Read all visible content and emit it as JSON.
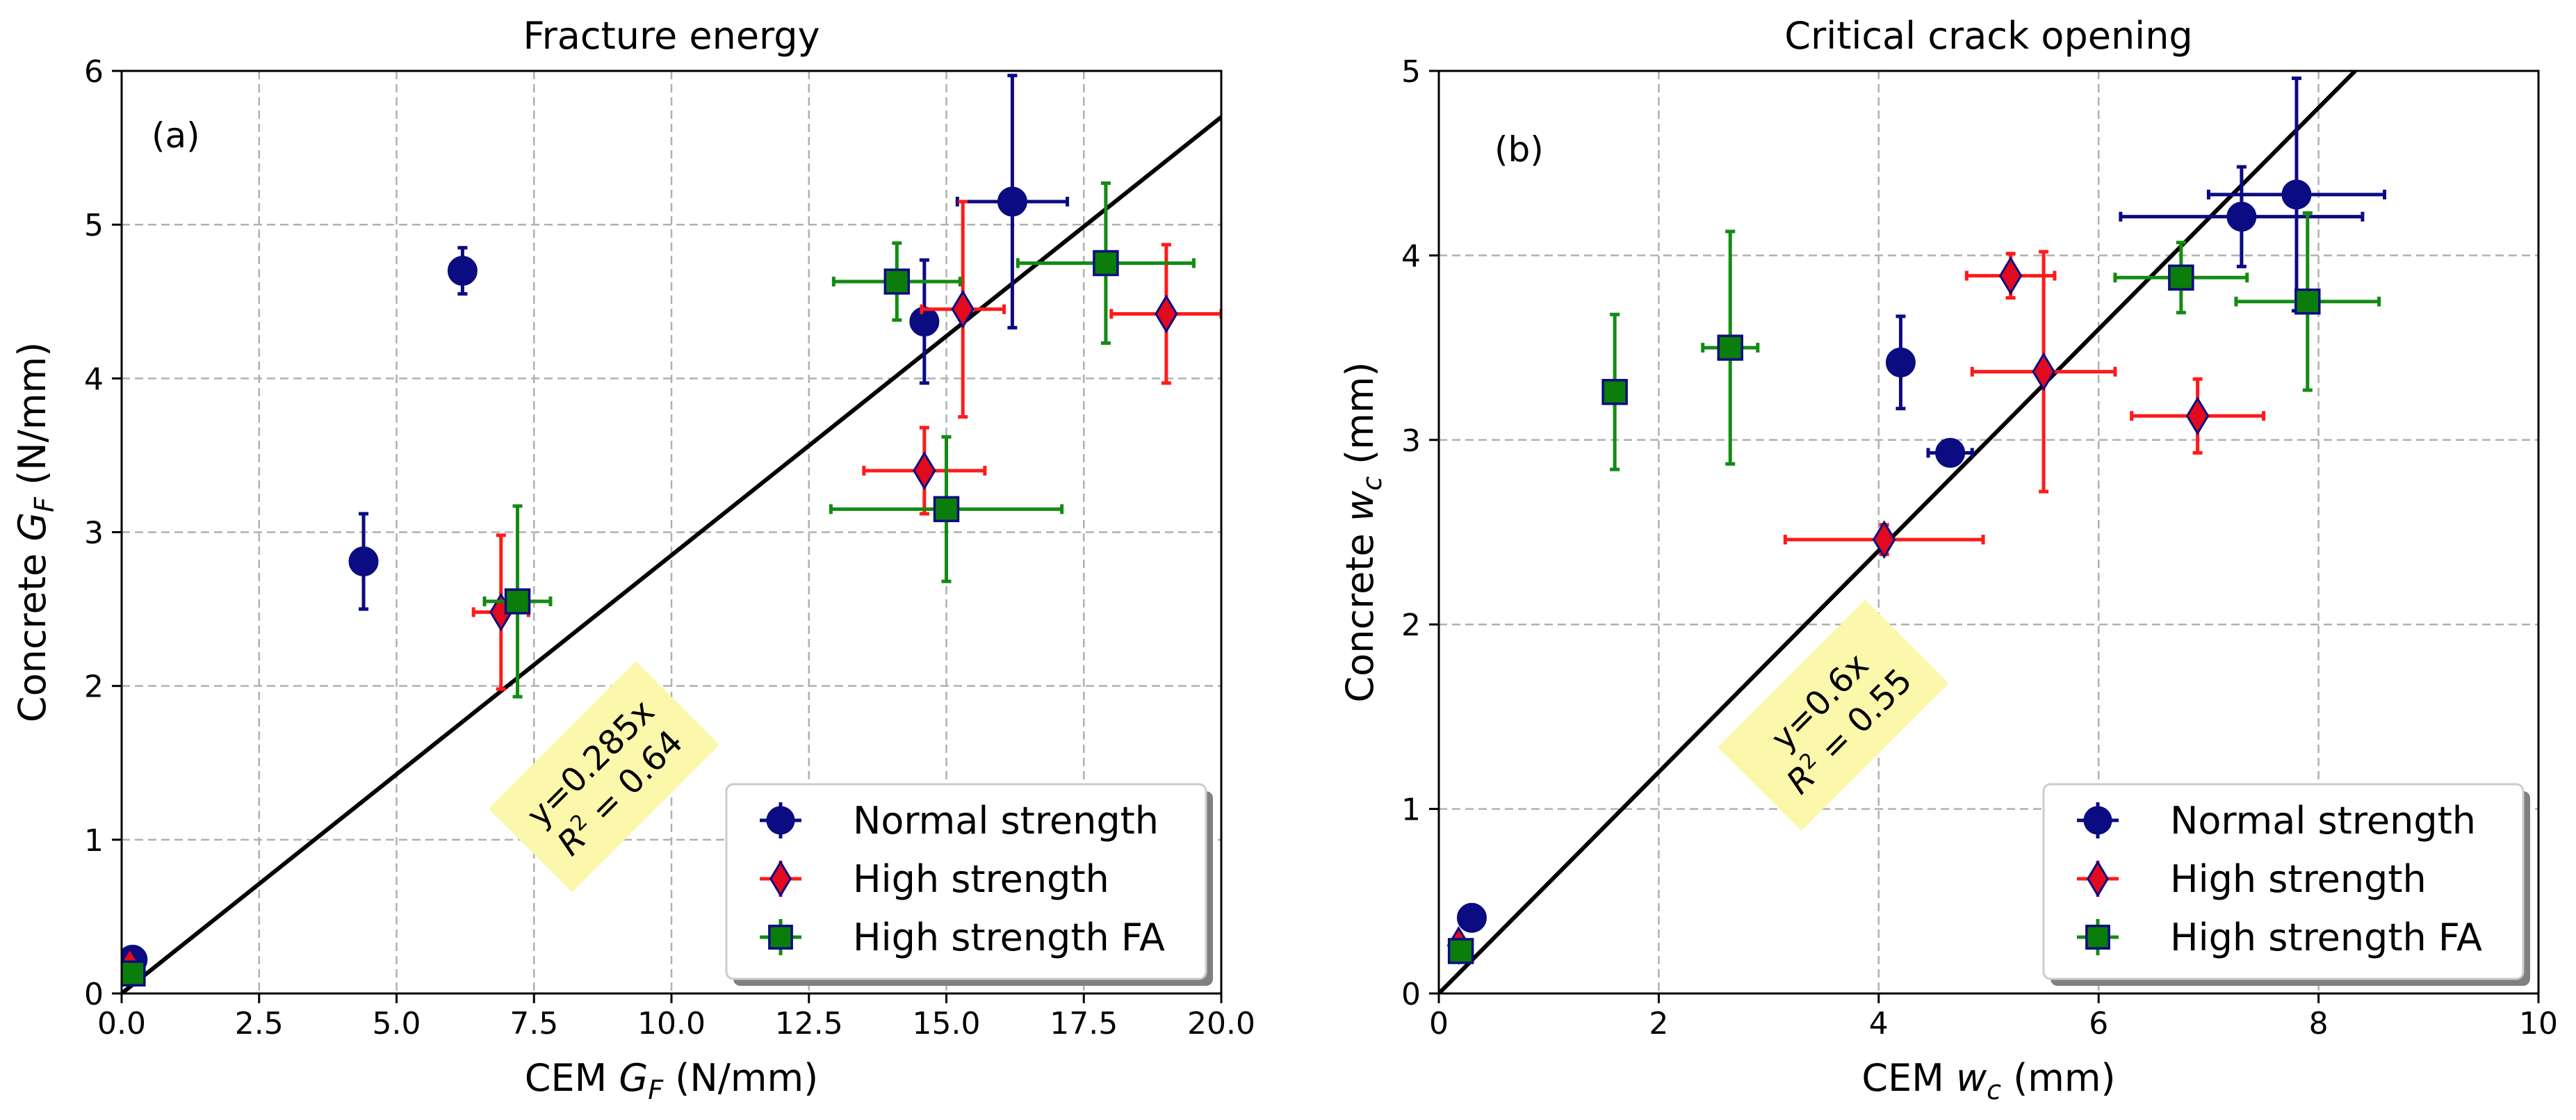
{
  "chart_data": [
    {
      "type": "scatter",
      "panel_label": "(a)",
      "title": "Fracture energy",
      "xlabel": {
        "prefix": "CEM ",
        "var": "G",
        "sub": "F",
        "suffix": " (N/mm)"
      },
      "ylabel": {
        "prefix": "Concrete ",
        "var": "G",
        "sub": "F",
        "suffix": " (N/mm)"
      },
      "xlim": [
        0,
        20
      ],
      "ylim": [
        0,
        6
      ],
      "xticks": [
        0,
        2.5,
        5,
        7.5,
        10,
        12.5,
        15,
        17.5,
        20
      ],
      "xtick_labels": [
        "0.0",
        "2.5",
        "5.0",
        "7.5",
        "10.0",
        "12.5",
        "15.0",
        "17.5",
        "20.0"
      ],
      "yticks": [
        0,
        1,
        2,
        3,
        4,
        5,
        6
      ],
      "ytick_labels": [
        "0",
        "1",
        "2",
        "3",
        "4",
        "5",
        "6"
      ],
      "grid": true,
      "legend_position": "lower-right",
      "fit": {
        "slope": 0.285,
        "label1": "y=0.285x",
        "r2_value": "0.64",
        "at": [
          8.8,
          1.4
        ]
      },
      "series": [
        {
          "name": "Normal strength",
          "marker": "circle",
          "points": [
            {
              "x": 0.2,
              "y": 0.22,
              "xerr": 0.05,
              "yerr": 0.05
            },
            {
              "x": 4.4,
              "y": 2.81,
              "xerr": 0.1,
              "yerr": 0.31
            },
            {
              "x": 6.2,
              "y": 4.7,
              "xerr": 0.1,
              "yerr": 0.15
            },
            {
              "x": 14.6,
              "y": 4.37,
              "xerr": 0.2,
              "yerr": 0.4
            },
            {
              "x": 16.2,
              "y": 5.15,
              "xerr": 1.0,
              "yerr": 0.82
            }
          ]
        },
        {
          "name": "High strength",
          "marker": "diamond",
          "points": [
            {
              "x": 0.15,
              "y": 0.18,
              "xerr": 0.05,
              "yerr": 0.05
            },
            {
              "x": 6.9,
              "y": 2.48,
              "xerr": 0.5,
              "yerr": 0.5
            },
            {
              "x": 14.6,
              "y": 3.4,
              "xerr": 1.1,
              "yerr": 0.28
            },
            {
              "x": 15.3,
              "y": 4.45,
              "xerr": 0.75,
              "yerr": 0.7
            },
            {
              "x": 19.0,
              "y": 4.42,
              "xerr": 1.0,
              "yerr": 0.45
            }
          ]
        },
        {
          "name": "High strength FA",
          "marker": "square",
          "points": [
            {
              "x": 0.2,
              "y": 0.13,
              "xerr": 0.05,
              "yerr": 0.05
            },
            {
              "x": 7.2,
              "y": 2.55,
              "xerr": 0.6,
              "yerr": 0.62
            },
            {
              "x": 14.1,
              "y": 4.63,
              "xerr": 1.15,
              "yerr": 0.25
            },
            {
              "x": 15.0,
              "y": 3.15,
              "xerr": 2.1,
              "yerr": 0.47
            },
            {
              "x": 17.9,
              "y": 4.75,
              "xerr": 1.6,
              "yerr": 0.52
            }
          ]
        }
      ]
    },
    {
      "type": "scatter",
      "panel_label": "(b)",
      "title": "Critical crack opening",
      "xlabel": {
        "prefix": "CEM ",
        "var": "w",
        "sub": "c",
        "suffix": " (mm)"
      },
      "ylabel": {
        "prefix": "Concrete ",
        "var": "w",
        "sub": "c",
        "suffix": " (mm)"
      },
      "xlim": [
        0,
        10
      ],
      "ylim": [
        0,
        5
      ],
      "xticks": [
        0,
        2,
        4,
        6,
        8,
        10
      ],
      "xtick_labels": [
        "0",
        "2",
        "4",
        "6",
        "8",
        "10"
      ],
      "yticks": [
        0,
        1,
        2,
        3,
        4,
        5
      ],
      "ytick_labels": [
        "0",
        "1",
        "2",
        "3",
        "4",
        "5"
      ],
      "grid": true,
      "legend_position": "lower-right",
      "fit": {
        "slope": 0.6,
        "label1": "y=0.6x",
        "r2_value": "0.55",
        "at": [
          3.6,
          1.5
        ]
      },
      "series": [
        {
          "name": "Normal strength",
          "marker": "circle",
          "points": [
            {
              "x": 0.3,
              "y": 0.41,
              "xerr": 0.05,
              "yerr": 0.05
            },
            {
              "x": 4.2,
              "y": 3.42,
              "xerr": 0.1,
              "yerr": 0.25
            },
            {
              "x": 4.65,
              "y": 2.93,
              "xerr": 0.2,
              "yerr": 0.05
            },
            {
              "x": 7.3,
              "y": 4.21,
              "xerr": 1.1,
              "yerr": 0.27
            },
            {
              "x": 7.8,
              "y": 4.33,
              "xerr": 0.8,
              "yerr": 0.63
            }
          ]
        },
        {
          "name": "High strength",
          "marker": "diamond",
          "points": [
            {
              "x": 0.18,
              "y": 0.26,
              "xerr": 0.05,
              "yerr": 0.05
            },
            {
              "x": 4.05,
              "y": 2.46,
              "xerr": 0.9,
              "yerr": 0.08
            },
            {
              "x": 5.2,
              "y": 3.89,
              "xerr": 0.4,
              "yerr": 0.12
            },
            {
              "x": 5.5,
              "y": 3.37,
              "xerr": 0.65,
              "yerr": 0.65
            },
            {
              "x": 6.9,
              "y": 3.13,
              "xerr": 0.6,
              "yerr": 0.2
            }
          ]
        },
        {
          "name": "High strength FA",
          "marker": "square",
          "points": [
            {
              "x": 0.2,
              "y": 0.23,
              "xerr": 0.05,
              "yerr": 0.05
            },
            {
              "x": 1.6,
              "y": 3.26,
              "xerr": 0.03,
              "yerr": 0.42
            },
            {
              "x": 2.65,
              "y": 3.5,
              "xerr": 0.25,
              "yerr": 0.63
            },
            {
              "x": 6.75,
              "y": 3.88,
              "xerr": 0.6,
              "yerr": 0.19
            },
            {
              "x": 7.9,
              "y": 3.75,
              "xerr": 0.65,
              "yerr": 0.48
            }
          ]
        }
      ]
    }
  ],
  "colors": {
    "normal_face": "#0b0b82",
    "normal_err": "#0b0b82",
    "high_face": "#e10a1e",
    "high_err": "#ff1a1a",
    "fa_face": "#0a7d0a",
    "fa_err": "#138b13",
    "marker_edge": "#0b0b82",
    "fit_line": "#000000",
    "annotation_bg": "#fbf7ab",
    "grid": "#b0b0b0"
  }
}
